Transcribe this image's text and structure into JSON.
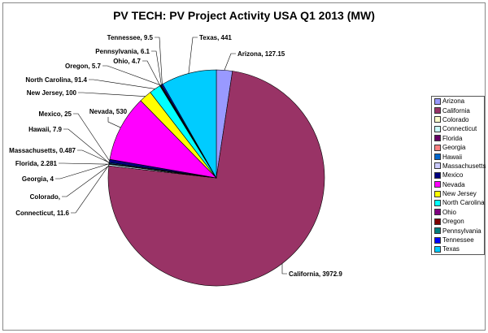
{
  "chart_data": {
    "type": "pie",
    "title": "PV TECH: PV Project Activity USA Q1 2013 (MW)",
    "legend_position": "right",
    "slices": [
      {
        "name": "Arizona",
        "value": 127.15,
        "label": "Arizona, 127.15",
        "color": "#9999ff"
      },
      {
        "name": "California",
        "value": 3972.9,
        "label": "California, 3972.9",
        "color": "#993366"
      },
      {
        "name": "Colorado",
        "value": null,
        "label": "Colorado,",
        "color": "#ffffcc"
      },
      {
        "name": "Connecticut",
        "value": 11.6,
        "label": "Connecticut, 11.6",
        "color": "#ccffff"
      },
      {
        "name": "Florida",
        "value": 2.281,
        "label": "Florida, 2.281",
        "color": "#660066"
      },
      {
        "name": "Georgia",
        "value": 4,
        "label": "Georgia, 4",
        "color": "#ff8080"
      },
      {
        "name": "Hawaii",
        "value": 7.9,
        "label": "Hawaii, 7.9",
        "color": "#0066cc"
      },
      {
        "name": "Massachusetts",
        "value": 0.487,
        "label": "Massachusetts, 0.487",
        "color": "#ccccff"
      },
      {
        "name": "Mexico",
        "value": 25,
        "label": "Mexico, 25",
        "color": "#000080"
      },
      {
        "name": "Nevada",
        "value": 530,
        "label": "Nevada, 530",
        "color": "#ff00ff"
      },
      {
        "name": "New Jersey",
        "value": 100,
        "label": "New Jersey, 100",
        "color": "#ffff00"
      },
      {
        "name": "North Carolina",
        "value": 91.4,
        "label": "North Carolina, 91.4",
        "color": "#00ffff"
      },
      {
        "name": "Ohio",
        "value": 4.7,
        "label": "Ohio, 4.7",
        "color": "#800080"
      },
      {
        "name": "Oregon",
        "value": 5.7,
        "label": "Oregon, 5.7",
        "color": "#800000"
      },
      {
        "name": "Pennsylvania",
        "value": 6.1,
        "label": "Pennsylvania, 6.1",
        "color": "#008080"
      },
      {
        "name": "Tennessee",
        "value": 9.5,
        "label": "Tennessee, 9.5",
        "color": "#0000ff"
      },
      {
        "name": "Texas",
        "value": 441,
        "label": "Texas, 441",
        "color": "#00ccff"
      }
    ]
  }
}
